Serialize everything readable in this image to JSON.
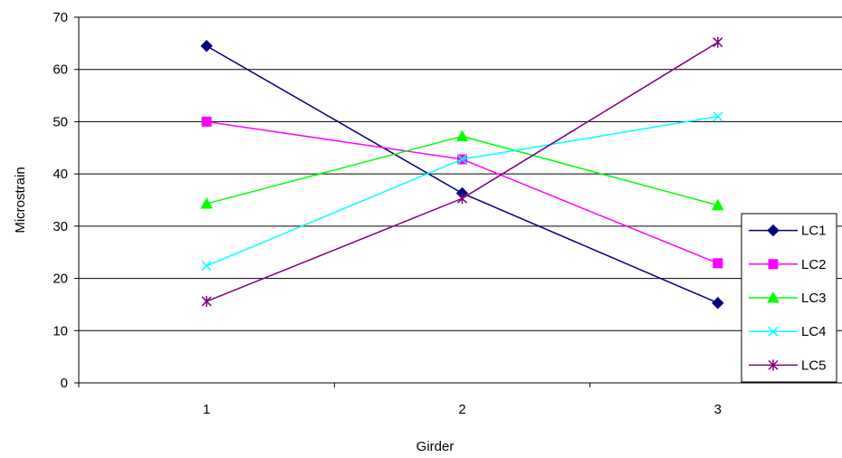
{
  "chart_data": {
    "type": "line",
    "xlabel": "Girder",
    "ylabel": "Microstrain",
    "categories": [
      "1",
      "2",
      "3"
    ],
    "ylim": [
      0,
      70
    ],
    "yticks": [
      0,
      10,
      20,
      30,
      40,
      50,
      60,
      70
    ],
    "grid": true,
    "legend_position": "bottom-right",
    "series": [
      {
        "name": "LC1",
        "values": [
          64.5,
          36.3,
          15.3
        ],
        "color": "#000080",
        "marker": "diamond"
      },
      {
        "name": "LC2",
        "values": [
          50.0,
          42.8,
          22.9
        ],
        "color": "#FF00FF",
        "marker": "square"
      },
      {
        "name": "LC3",
        "values": [
          34.3,
          47.2,
          34.0
        ],
        "color": "#00FF00",
        "marker": "triangle"
      },
      {
        "name": "LC4",
        "values": [
          22.4,
          42.8,
          51.0
        ],
        "color": "#00FFFF",
        "marker": "x"
      },
      {
        "name": "LC5",
        "values": [
          15.6,
          35.3,
          65.2
        ],
        "color": "#800080",
        "marker": "star"
      }
    ]
  }
}
